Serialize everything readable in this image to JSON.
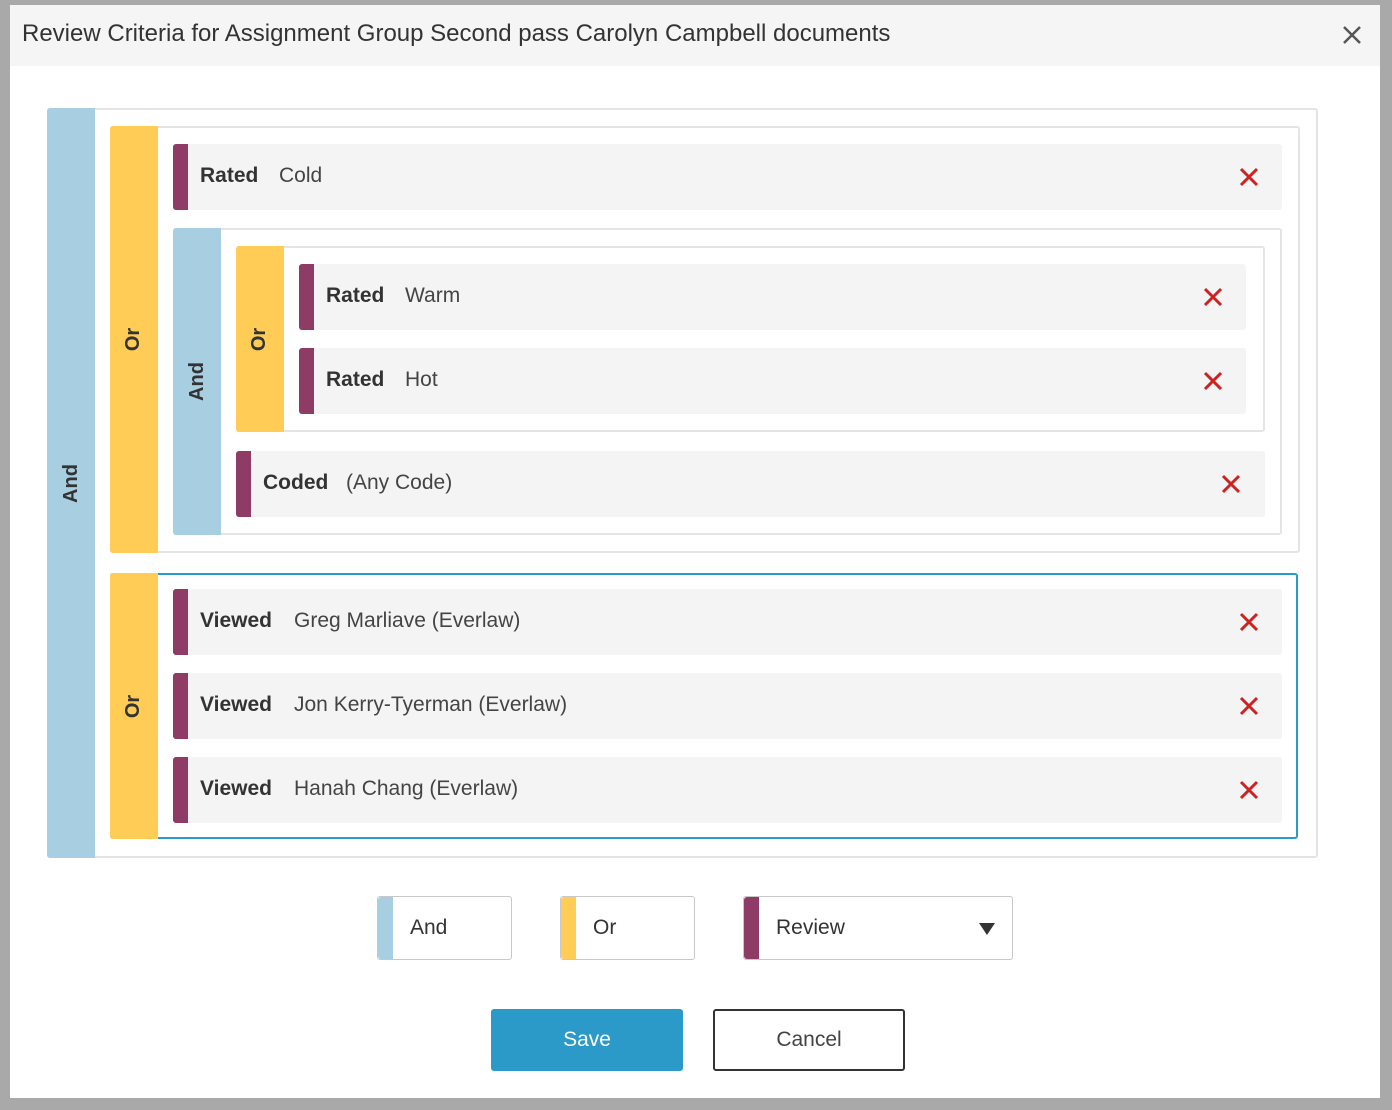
{
  "dialog": {
    "title": "Review Criteria for Assignment Group Second pass Carolyn Campbell documents"
  },
  "tree": {
    "root_operator": "And",
    "group1": {
      "operator": "Or",
      "item1": {
        "type": "Rated",
        "value": "Cold"
      },
      "subgroup": {
        "operator": "And",
        "inner_group": {
          "operator": "Or",
          "item1": {
            "type": "Rated",
            "value": "Warm"
          },
          "item2": {
            "type": "Rated",
            "value": "Hot"
          }
        },
        "item": {
          "type": "Coded",
          "value": "(Any Code)"
        }
      }
    },
    "group2": {
      "operator": "Or",
      "items": [
        {
          "type": "Viewed",
          "value": "Greg Marliave (Everlaw)"
        },
        {
          "type": "Viewed",
          "value": "Jon Kerry-Tyerman (Everlaw)"
        },
        {
          "type": "Viewed",
          "value": "Hanah Chang (Everlaw)"
        }
      ]
    }
  },
  "toolbar": {
    "and_label": "And",
    "or_label": "Or",
    "review_select": "Review"
  },
  "footer": {
    "save_label": "Save",
    "cancel_label": "Cancel"
  },
  "colors": {
    "and": "#a7cfe1",
    "or": "#ffcc55",
    "criterion": "#8e3b66",
    "remove": "#cc2222",
    "primary": "#2b9ac9"
  },
  "icons": {
    "close": "close-icon",
    "remove": "remove-icon",
    "dropdown": "caret-down-icon"
  }
}
